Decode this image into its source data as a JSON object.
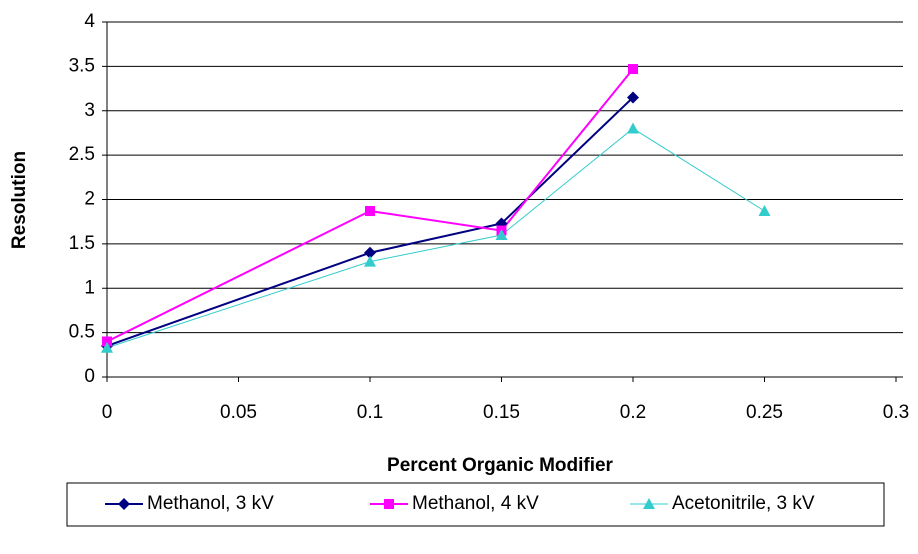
{
  "chart_data": {
    "type": "line",
    "x_label": "Percent Organic Modifier",
    "y_label": "Resolution",
    "x": [
      0,
      0.1,
      0.15,
      0.2,
      0.25
    ],
    "series": [
      {
        "name": "Methanol, 3 kV",
        "color": "#000080",
        "marker": "diamond",
        "values": [
          0.35,
          1.4,
          1.73,
          3.15,
          null
        ]
      },
      {
        "name": "Methanol, 4 kV",
        "color": "#ff00ff",
        "marker": "square",
        "values": [
          0.4,
          1.87,
          1.65,
          3.47,
          null
        ]
      },
      {
        "name": "Acetonitrile, 3 kV",
        "color": "#33cccc",
        "marker": "triangle",
        "values": [
          0.33,
          1.3,
          1.6,
          2.8,
          1.87
        ]
      }
    ],
    "xlim": [
      0,
      0.3
    ],
    "xticks": [
      0,
      0.05,
      0.1,
      0.15,
      0.2,
      0.25,
      0.3
    ],
    "ylim": [
      0,
      4
    ],
    "yticks": [
      0,
      0.5,
      1,
      1.5,
      2,
      2.5,
      3,
      3.5,
      4
    ],
    "grid": true,
    "legend": "bottom"
  }
}
